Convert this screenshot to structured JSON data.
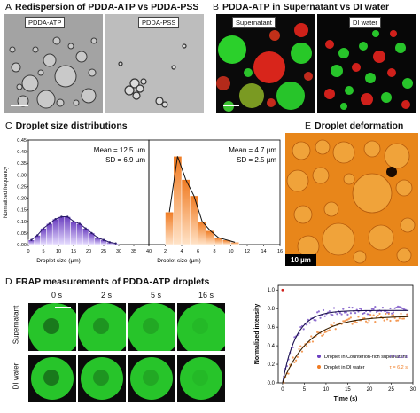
{
  "panel_a": {
    "letter": "A",
    "title": "Redispersion of PDDA-ATP vs PDDA-PSS",
    "label_left": "PDDA-ATP",
    "label_right": "PDDA-PSS"
  },
  "panel_b": {
    "letter": "B",
    "title": "PDDA-ATP in Supernatant vs DI water",
    "label_left": "Supernatant",
    "label_right": "DI water"
  },
  "panel_c": {
    "letter": "C",
    "title": "Droplet size distributions"
  },
  "panel_d": {
    "letter": "D",
    "title": "FRAP measurements of PDDA-ATP droplets",
    "times": [
      "0 s",
      "2 s",
      "5 s",
      "16 s"
    ],
    "row_labels": [
      "Supernatant",
      "DI water"
    ]
  },
  "panel_e": {
    "letter": "E",
    "title": "Droplet deformation",
    "scale_label": "10 µm"
  },
  "colors": {
    "purple": "#6b3fc0",
    "orange": "#f07b22",
    "green": "#27c42a",
    "red": "#d0201b",
    "amber": "#f08a1c"
  },
  "chart_data": [
    {
      "type": "bar",
      "id": "size-dist-supernatant",
      "xlabel": "Droplet size (µm)",
      "ylabel": "Normalized frequency",
      "xlim": [
        0,
        40
      ],
      "ylim": [
        0,
        0.45
      ],
      "xticks": [
        "0",
        "5",
        "10",
        "15",
        "20",
        "25",
        "30",
        "35",
        "40"
      ],
      "yticks": [
        "0.00",
        "0.05",
        "0.10",
        "0.15",
        "0.20",
        "0.25",
        "0.30",
        "0.35",
        "0.40",
        "0.45"
      ],
      "bin_width": 2,
      "bins_x": [
        1,
        3,
        5,
        7,
        9,
        11,
        13,
        15,
        17,
        19,
        21,
        23,
        25,
        27,
        29
      ],
      "values": [
        0.02,
        0.04,
        0.07,
        0.09,
        0.11,
        0.12,
        0.12,
        0.1,
        0.09,
        0.07,
        0.05,
        0.03,
        0.02,
        0.01,
        0.005
      ],
      "annotation": [
        "Mean = 12.5 µm",
        "SD = 6.9 µm"
      ],
      "color": "#6b3fc0"
    },
    {
      "type": "bar",
      "id": "size-dist-di-water",
      "xlabel": "Droplet size (µm)",
      "xlim": [
        0,
        16
      ],
      "ylim": [
        0,
        0.45
      ],
      "xticks": [
        "0",
        "2",
        "4",
        "6",
        "8",
        "10",
        "12",
        "14",
        "16"
      ],
      "bin_width": 1,
      "bins_x": [
        2.5,
        3.5,
        4.5,
        5.5,
        6.5,
        7.5,
        8.5,
        9.5,
        10.5
      ],
      "values": [
        0.14,
        0.38,
        0.28,
        0.21,
        0.1,
        0.06,
        0.03,
        0.02,
        0.01
      ],
      "annotation": [
        "Mean = 4.7 µm",
        "SD = 2.5 µm"
      ],
      "color": "#f07b22"
    },
    {
      "type": "scatter",
      "id": "frap-recovery",
      "xlabel": "Time (s)",
      "ylabel": "Normalized intensity",
      "xlim": [
        -1,
        30
      ],
      "ylim": [
        0,
        1.05
      ],
      "xticks": [
        "0",
        "5",
        "10",
        "15",
        "20",
        "25",
        "30"
      ],
      "yticks": [
        "0.0",
        "0.2",
        "0.4",
        "0.6",
        "0.8",
        "1.0"
      ],
      "series": [
        {
          "name": "Droplet in Counterion-rich supernatant",
          "tau_label": "τ = 3.1 s",
          "plateau": 0.78,
          "tau": 3.1,
          "color": "#6b3fc0"
        },
        {
          "name": "Droplet in DI water",
          "tau_label": "τ = 6.2 s",
          "plateau": 0.72,
          "tau": 6.2,
          "color": "#f07b22"
        }
      ],
      "initial_point": [
        0,
        1.0
      ]
    }
  ]
}
